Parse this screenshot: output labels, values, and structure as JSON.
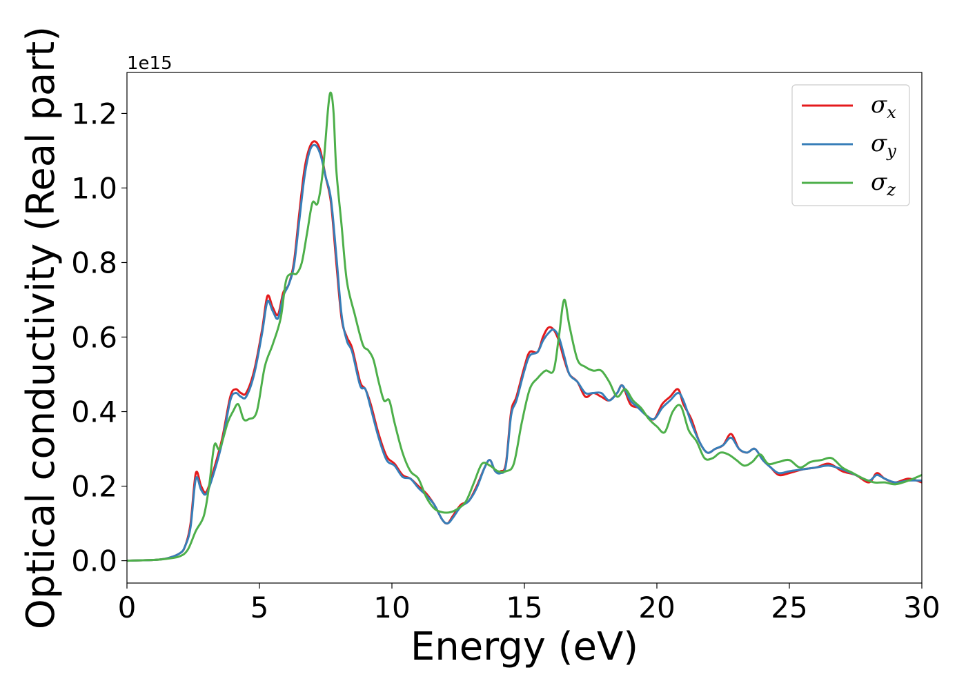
{
  "chart_data": {
    "type": "line",
    "xlabel": "Energy (eV)",
    "ylabel": "Optical conductivity (Real part)",
    "y_offset_text": "1e15",
    "xlim": [
      0,
      30
    ],
    "ylim": [
      -0.06,
      1.31
    ],
    "x_ticks": [
      0,
      5,
      10,
      15,
      20,
      25,
      30
    ],
    "x_tick_labels": [
      "0",
      "5",
      "10",
      "15",
      "20",
      "25",
      "30"
    ],
    "y_ticks": [
      0.0,
      0.2,
      0.4,
      0.6,
      0.8,
      1.0,
      1.2
    ],
    "y_tick_labels": [
      "0.0",
      "0.2",
      "0.4",
      "0.6",
      "0.8",
      "1.0",
      "1.2"
    ],
    "grid": false,
    "legend_position": "top-right",
    "series": [
      {
        "name": "σx",
        "symbol": "σ",
        "subscript": "x",
        "color": "#e41a1c",
        "x": [
          0,
          1,
          1.5,
          2,
          2.2,
          2.4,
          2.6,
          2.8,
          3.0,
          3.3,
          3.6,
          3.9,
          4.1,
          4.3,
          4.5,
          4.8,
          5.1,
          5.3,
          5.5,
          5.7,
          5.9,
          6.1,
          6.3,
          6.5,
          6.7,
          6.9,
          7.1,
          7.3,
          7.5,
          7.7,
          7.9,
          8.1,
          8.3,
          8.5,
          8.8,
          9.0,
          9.2,
          9.5,
          9.8,
          10.1,
          10.4,
          10.7,
          11.0,
          11.3,
          11.6,
          11.9,
          12.1,
          12.3,
          12.6,
          12.9,
          13.2,
          13.5,
          13.7,
          13.9,
          14.1,
          14.3,
          14.5,
          14.7,
          15.0,
          15.2,
          15.5,
          15.7,
          15.9,
          16.1,
          16.3,
          16.5,
          16.7,
          17.0,
          17.3,
          17.6,
          17.9,
          18.2,
          18.5,
          18.7,
          19.0,
          19.3,
          19.6,
          19.9,
          20.2,
          20.5,
          20.8,
          21.0,
          21.3,
          21.6,
          21.9,
          22.2,
          22.5,
          22.8,
          23.1,
          23.4,
          23.7,
          24.0,
          24.3,
          24.6,
          25.0,
          25.5,
          26.0,
          26.5,
          27.0,
          27.5,
          28.0,
          28.3,
          28.6,
          29.0,
          29.5,
          30.0
        ],
        "y": [
          0.0,
          0.002,
          0.006,
          0.02,
          0.04,
          0.1,
          0.235,
          0.2,
          0.185,
          0.25,
          0.33,
          0.44,
          0.46,
          0.45,
          0.45,
          0.51,
          0.62,
          0.71,
          0.68,
          0.66,
          0.72,
          0.74,
          0.8,
          0.93,
          1.05,
          1.11,
          1.125,
          1.1,
          1.03,
          0.96,
          0.8,
          0.65,
          0.6,
          0.57,
          0.48,
          0.46,
          0.42,
          0.34,
          0.28,
          0.26,
          0.23,
          0.22,
          0.2,
          0.18,
          0.15,
          0.11,
          0.1,
          0.12,
          0.15,
          0.16,
          0.2,
          0.25,
          0.27,
          0.24,
          0.24,
          0.26,
          0.4,
          0.44,
          0.52,
          0.56,
          0.56,
          0.6,
          0.625,
          0.62,
          0.59,
          0.54,
          0.5,
          0.48,
          0.44,
          0.45,
          0.44,
          0.43,
          0.45,
          0.47,
          0.42,
          0.41,
          0.39,
          0.38,
          0.42,
          0.44,
          0.46,
          0.42,
          0.38,
          0.32,
          0.29,
          0.3,
          0.31,
          0.34,
          0.3,
          0.29,
          0.3,
          0.27,
          0.25,
          0.23,
          0.235,
          0.245,
          0.25,
          0.26,
          0.24,
          0.23,
          0.21,
          0.235,
          0.22,
          0.21,
          0.22,
          0.21
        ]
      },
      {
        "name": "σy",
        "symbol": "σ",
        "subscript": "y",
        "color": "#377eb8",
        "x": [
          0,
          1,
          1.5,
          2,
          2.2,
          2.4,
          2.6,
          2.8,
          3.0,
          3.3,
          3.6,
          3.9,
          4.1,
          4.3,
          4.5,
          4.8,
          5.1,
          5.3,
          5.5,
          5.7,
          5.9,
          6.1,
          6.3,
          6.5,
          6.7,
          6.9,
          7.1,
          7.3,
          7.5,
          7.7,
          7.9,
          8.1,
          8.3,
          8.5,
          8.8,
          9.0,
          9.2,
          9.5,
          9.8,
          10.1,
          10.4,
          10.7,
          11.0,
          11.3,
          11.6,
          11.9,
          12.1,
          12.3,
          12.6,
          12.9,
          13.2,
          13.5,
          13.7,
          13.9,
          14.1,
          14.3,
          14.5,
          14.7,
          15.0,
          15.2,
          15.5,
          15.7,
          15.9,
          16.1,
          16.3,
          16.5,
          16.7,
          17.0,
          17.3,
          17.6,
          17.9,
          18.2,
          18.5,
          18.7,
          19.0,
          19.3,
          19.6,
          19.9,
          20.2,
          20.5,
          20.8,
          21.0,
          21.3,
          21.6,
          21.9,
          22.2,
          22.5,
          22.8,
          23.1,
          23.4,
          23.7,
          24.0,
          24.3,
          24.6,
          25.0,
          25.5,
          26.0,
          26.5,
          27.0,
          27.5,
          28.0,
          28.3,
          28.6,
          29.0,
          29.5,
          30.0
        ],
        "y": [
          0.0,
          0.002,
          0.006,
          0.02,
          0.04,
          0.09,
          0.22,
          0.19,
          0.18,
          0.24,
          0.32,
          0.43,
          0.45,
          0.44,
          0.44,
          0.5,
          0.61,
          0.695,
          0.67,
          0.65,
          0.71,
          0.74,
          0.79,
          0.91,
          1.03,
          1.1,
          1.115,
          1.09,
          1.03,
          0.97,
          0.82,
          0.66,
          0.59,
          0.56,
          0.47,
          0.46,
          0.41,
          0.33,
          0.27,
          0.255,
          0.225,
          0.22,
          0.195,
          0.175,
          0.15,
          0.11,
          0.1,
          0.115,
          0.145,
          0.16,
          0.195,
          0.25,
          0.27,
          0.24,
          0.235,
          0.255,
          0.39,
          0.43,
          0.51,
          0.55,
          0.56,
          0.59,
          0.61,
          0.62,
          0.6,
          0.55,
          0.5,
          0.48,
          0.45,
          0.45,
          0.45,
          0.43,
          0.45,
          0.47,
          0.43,
          0.41,
          0.39,
          0.38,
          0.41,
          0.43,
          0.45,
          0.43,
          0.37,
          0.32,
          0.29,
          0.3,
          0.31,
          0.33,
          0.3,
          0.29,
          0.3,
          0.27,
          0.25,
          0.235,
          0.24,
          0.245,
          0.25,
          0.255,
          0.245,
          0.23,
          0.215,
          0.23,
          0.22,
          0.21,
          0.215,
          0.215
        ]
      },
      {
        "name": "σz",
        "symbol": "σ",
        "subscript": "z",
        "color": "#4daf4a",
        "x": [
          0,
          1,
          1.5,
          2,
          2.3,
          2.6,
          2.9,
          3.1,
          3.3,
          3.5,
          3.8,
          4.0,
          4.2,
          4.4,
          4.6,
          4.9,
          5.2,
          5.5,
          5.8,
          6.0,
          6.2,
          6.4,
          6.6,
          6.8,
          7.0,
          7.2,
          7.4,
          7.6,
          7.7,
          7.8,
          7.9,
          8.1,
          8.3,
          8.6,
          8.9,
          9.1,
          9.3,
          9.5,
          9.7,
          9.9,
          10.1,
          10.4,
          10.7,
          11.0,
          11.3,
          11.6,
          11.9,
          12.2,
          12.5,
          12.8,
          13.1,
          13.4,
          13.7,
          14.0,
          14.3,
          14.6,
          14.9,
          15.2,
          15.5,
          15.8,
          16.1,
          16.3,
          16.5,
          16.7,
          17.0,
          17.3,
          17.6,
          17.9,
          18.2,
          18.5,
          18.8,
          19.1,
          19.4,
          19.7,
          20.0,
          20.3,
          20.6,
          20.9,
          21.2,
          21.5,
          21.8,
          22.1,
          22.4,
          22.7,
          23.0,
          23.3,
          23.6,
          23.9,
          24.2,
          24.6,
          25.0,
          25.4,
          25.8,
          26.2,
          26.6,
          27.0,
          27.4,
          27.8,
          28.2,
          28.6,
          29.0,
          29.5,
          30.0
        ],
        "y": [
          0.0,
          0.002,
          0.005,
          0.012,
          0.03,
          0.08,
          0.12,
          0.2,
          0.31,
          0.3,
          0.37,
          0.4,
          0.42,
          0.38,
          0.38,
          0.4,
          0.52,
          0.58,
          0.65,
          0.75,
          0.77,
          0.77,
          0.8,
          0.88,
          0.96,
          0.96,
          1.05,
          1.22,
          1.255,
          1.2,
          1.05,
          0.9,
          0.75,
          0.66,
          0.58,
          0.565,
          0.54,
          0.48,
          0.43,
          0.43,
          0.37,
          0.29,
          0.24,
          0.22,
          0.17,
          0.14,
          0.13,
          0.13,
          0.14,
          0.16,
          0.21,
          0.26,
          0.255,
          0.24,
          0.24,
          0.26,
          0.37,
          0.46,
          0.49,
          0.51,
          0.51,
          0.6,
          0.7,
          0.63,
          0.54,
          0.52,
          0.51,
          0.51,
          0.48,
          0.44,
          0.46,
          0.43,
          0.41,
          0.38,
          0.36,
          0.345,
          0.4,
          0.415,
          0.35,
          0.32,
          0.275,
          0.275,
          0.29,
          0.285,
          0.27,
          0.255,
          0.265,
          0.285,
          0.26,
          0.265,
          0.27,
          0.25,
          0.265,
          0.27,
          0.275,
          0.25,
          0.235,
          0.22,
          0.21,
          0.21,
          0.205,
          0.215,
          0.23
        ]
      }
    ]
  }
}
